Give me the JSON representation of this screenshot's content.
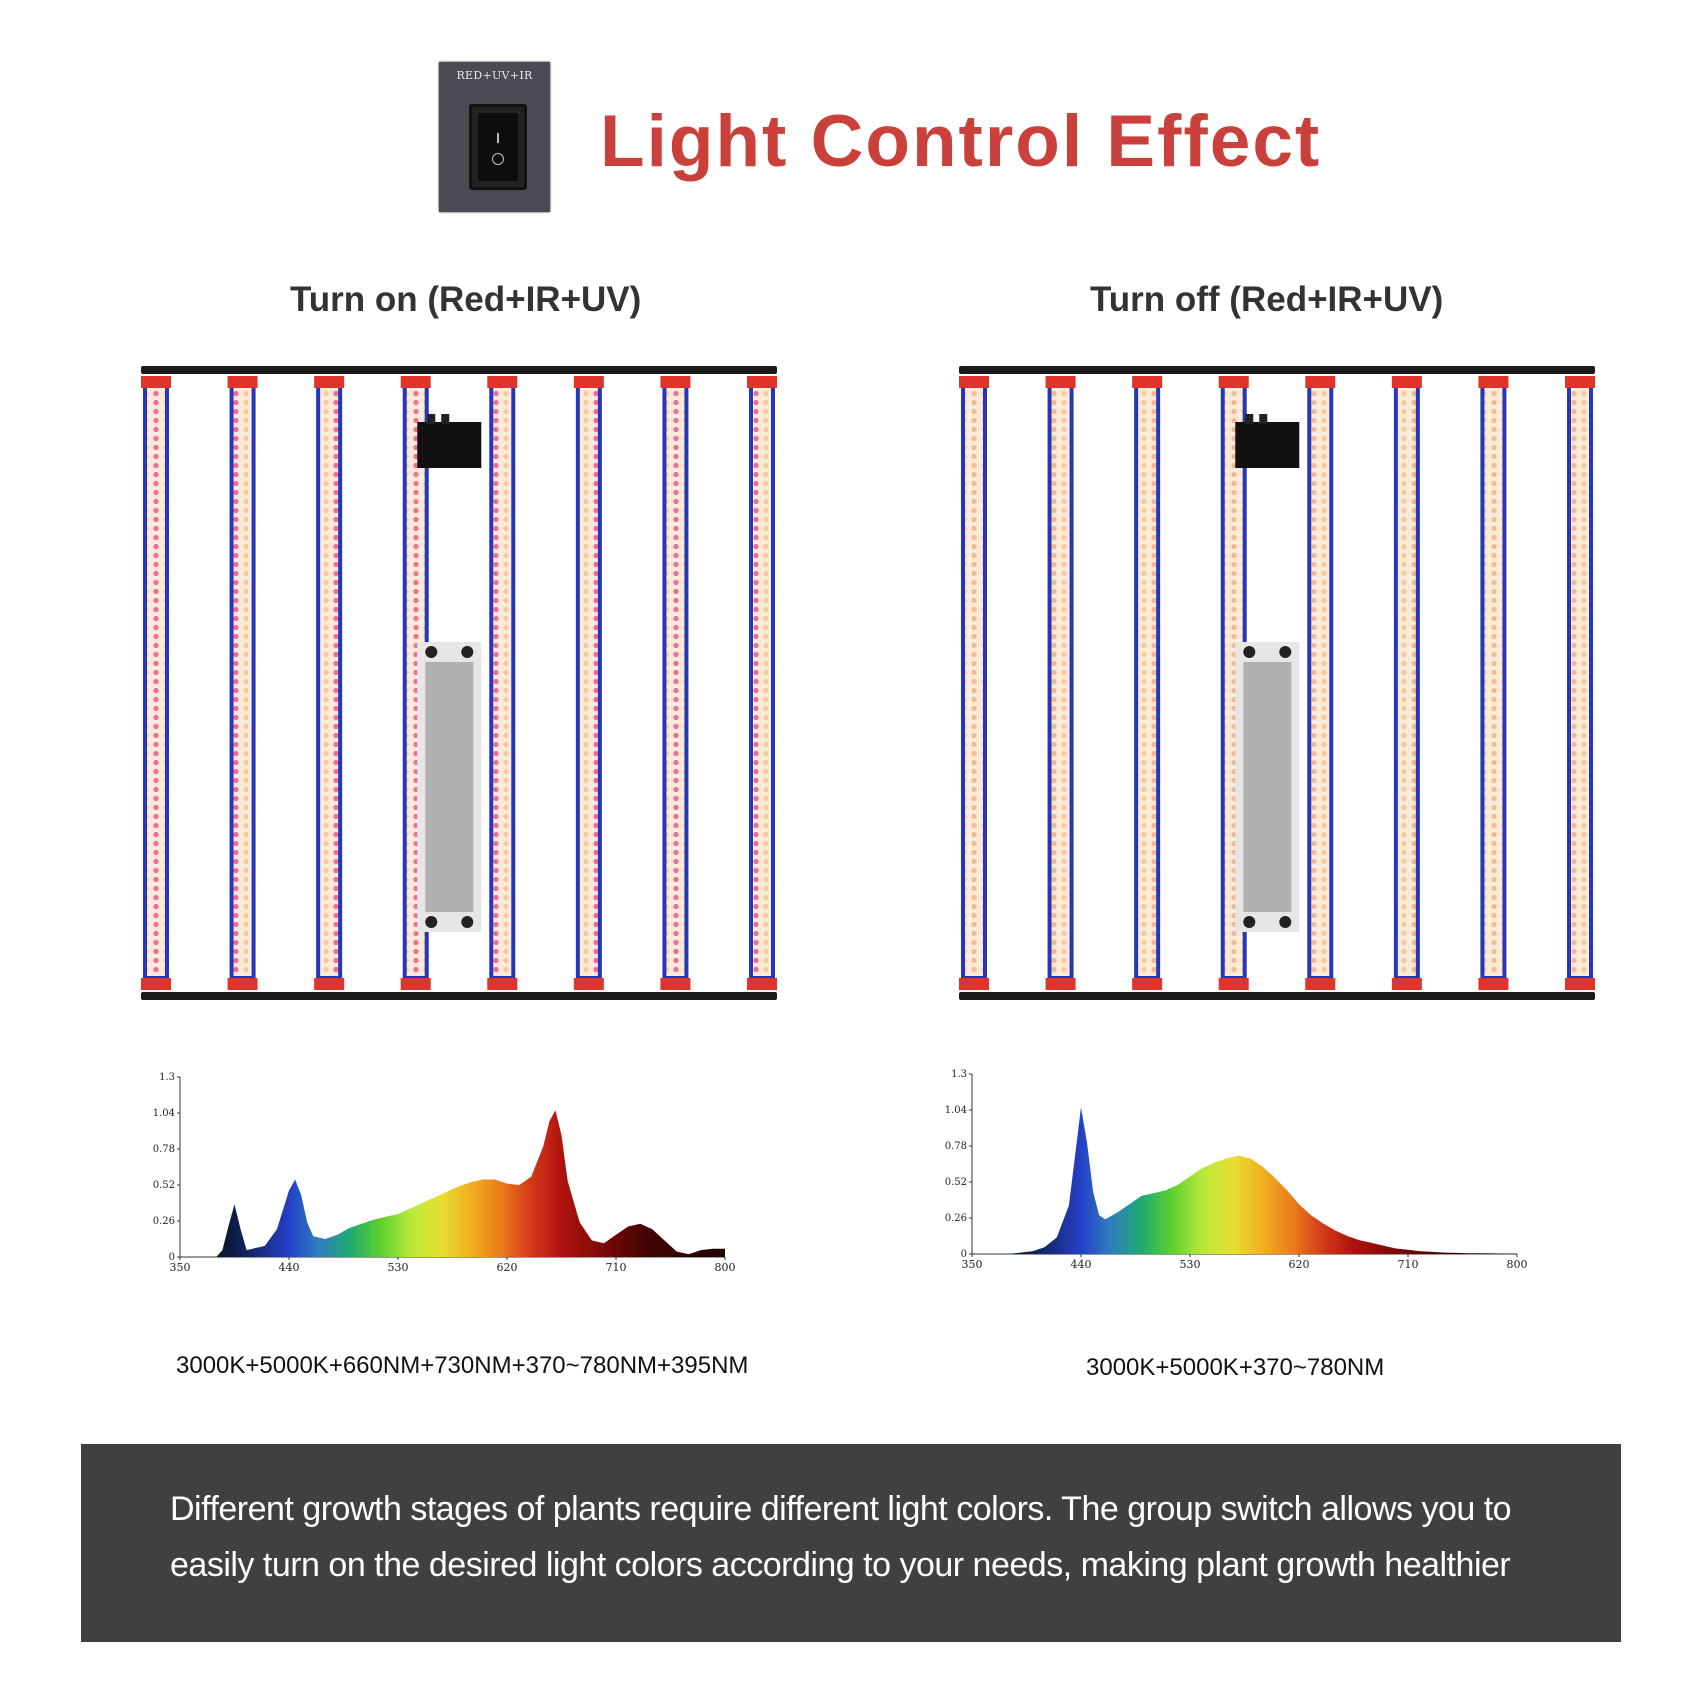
{
  "title": "Light Control Effect",
  "switch": {
    "label": "RED+UV+IR",
    "icon": "rocker-switch-icon"
  },
  "panels": [
    {
      "title": "Turn on (Red+IR+UV)",
      "caption": "3000K+5000K+660NM+730NM+370~780NM+395NM",
      "state": "on"
    },
    {
      "title": "Turn off (Red+IR+UV)",
      "caption": "3000K+5000K+370~780NM",
      "state": "off"
    }
  ],
  "chart_data": [
    {
      "type": "area",
      "x": [
        350,
        380,
        385,
        390,
        395,
        400,
        405,
        410,
        420,
        430,
        440,
        445,
        450,
        455,
        460,
        470,
        480,
        490,
        500,
        510,
        520,
        530,
        540,
        550,
        560,
        570,
        580,
        590,
        600,
        610,
        620,
        630,
        640,
        650,
        655,
        660,
        665,
        670,
        680,
        690,
        700,
        710,
        720,
        730,
        740,
        750,
        760,
        770,
        780,
        790,
        800
      ],
      "y": [
        0,
        0,
        0.05,
        0.22,
        0.38,
        0.2,
        0.05,
        0.06,
        0.08,
        0.2,
        0.48,
        0.56,
        0.45,
        0.25,
        0.15,
        0.13,
        0.16,
        0.21,
        0.24,
        0.27,
        0.29,
        0.31,
        0.35,
        0.39,
        0.43,
        0.47,
        0.51,
        0.54,
        0.56,
        0.56,
        0.53,
        0.52,
        0.58,
        0.8,
        0.98,
        1.06,
        0.88,
        0.55,
        0.25,
        0.12,
        0.1,
        0.16,
        0.22,
        0.24,
        0.2,
        0.12,
        0.04,
        0.02,
        0.05,
        0.06,
        0.06
      ],
      "xticks": [
        350,
        440,
        530,
        620,
        710,
        800
      ],
      "yticks": [
        "0",
        "0.26",
        "0.52",
        "0.78",
        "1.04",
        "1.3"
      ],
      "xlim": [
        350,
        800
      ],
      "ylim": [
        0,
        1.3
      ]
    },
    {
      "type": "area",
      "x": [
        350,
        380,
        400,
        410,
        420,
        430,
        435,
        440,
        445,
        450,
        455,
        460,
        470,
        480,
        490,
        500,
        510,
        520,
        530,
        540,
        550,
        560,
        570,
        580,
        590,
        600,
        610,
        620,
        630,
        640,
        650,
        660,
        670,
        680,
        690,
        700,
        710,
        720,
        730,
        740,
        750,
        760,
        770,
        780,
        790,
        800
      ],
      "y": [
        0,
        0,
        0.02,
        0.05,
        0.12,
        0.35,
        0.7,
        1.06,
        0.8,
        0.45,
        0.28,
        0.25,
        0.3,
        0.36,
        0.42,
        0.44,
        0.46,
        0.5,
        0.56,
        0.62,
        0.66,
        0.69,
        0.71,
        0.69,
        0.63,
        0.55,
        0.46,
        0.36,
        0.28,
        0.22,
        0.17,
        0.13,
        0.1,
        0.08,
        0.06,
        0.04,
        0.03,
        0.02,
        0.015,
        0.01,
        0.008,
        0.006,
        0.005,
        0.004,
        0.003,
        0.002
      ],
      "xticks": [
        350,
        440,
        530,
        620,
        710,
        800
      ],
      "yticks": [
        "0",
        "0.26",
        "0.52",
        "0.78",
        "1.04",
        "1.3"
      ],
      "xlim": [
        350,
        800
      ],
      "ylim": [
        0,
        1.3
      ]
    }
  ],
  "banner": {
    "text": "Different growth stages of plants require different light colors. The group switch allows you to easily turn on the desired light colors according to your needs, making plant growth healthier"
  }
}
